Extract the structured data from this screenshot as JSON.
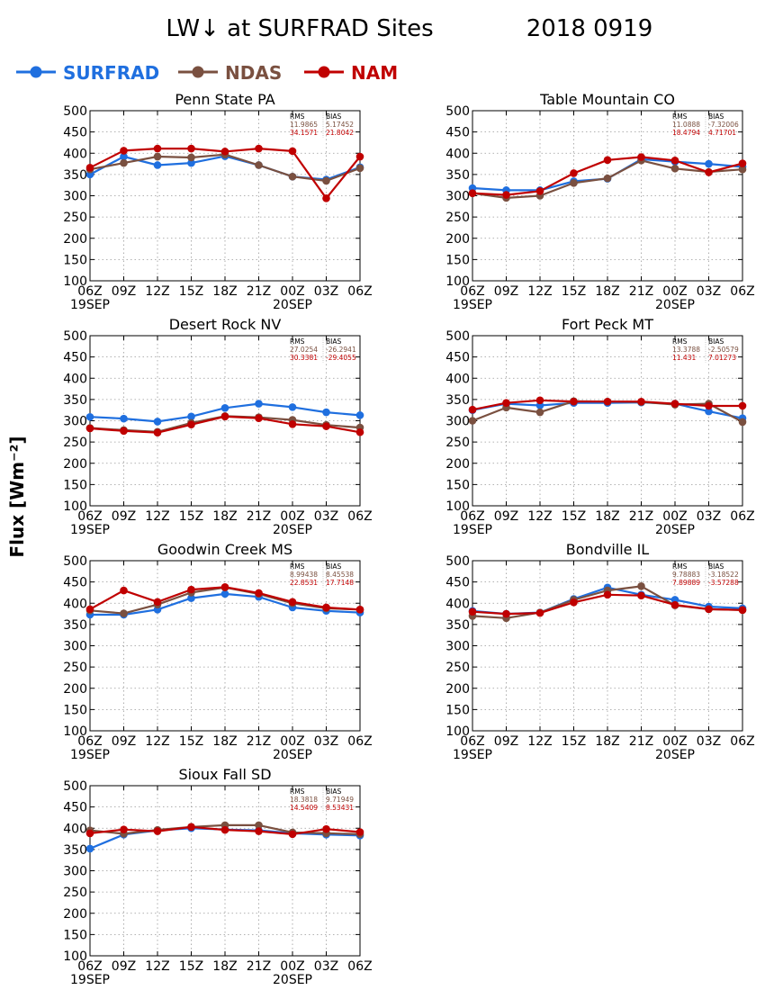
{
  "title": {
    "main": "LW↓ at SURFRAD Sites",
    "date": "2018 0919"
  },
  "legend": [
    {
      "name": "SURFRAD",
      "color": "#1f6fdf"
    },
    {
      "name": "NDAS",
      "color": "#7a5040"
    },
    {
      "name": "NAM",
      "color": "#c00000"
    }
  ],
  "ylabel": "Flux [Wm⁻²]",
  "stats_header": {
    "rms": "RMS",
    "bias": "BIAS"
  },
  "chart_data": [
    {
      "type": "line",
      "title": "Penn State PA",
      "categories": [
        "06Z",
        "09Z",
        "12Z",
        "15Z",
        "18Z",
        "21Z",
        "00Z",
        "03Z",
        "06Z"
      ],
      "date_labels": [
        "19SEP",
        "",
        "",
        "",
        "",
        "",
        "20SEP",
        "",
        ""
      ],
      "ylim": [
        100,
        500
      ],
      "yticks": [
        100,
        150,
        200,
        250,
        300,
        350,
        400,
        450,
        500
      ],
      "grid": true,
      "series": [
        {
          "name": "SURFRAD",
          "values": [
            350,
            392,
            372,
            377,
            393,
            372,
            345,
            338,
            367
          ]
        },
        {
          "name": "NDAS",
          "values": [
            362,
            377,
            392,
            390,
            397,
            372,
            345,
            335,
            365
          ]
        },
        {
          "name": "NAM",
          "values": [
            366,
            406,
            411,
            411,
            404,
            411,
            405,
            294,
            392
          ]
        }
      ],
      "stats": [
        {
          "rms": "11.9865",
          "bias": "5.17452"
        },
        {
          "rms": "34.1571",
          "bias": "21.8042"
        }
      ]
    },
    {
      "type": "line",
      "title": "Table Mountain CO",
      "categories": [
        "06Z",
        "09Z",
        "12Z",
        "15Z",
        "18Z",
        "21Z",
        "00Z",
        "03Z",
        "06Z"
      ],
      "date_labels": [
        "19SEP",
        "",
        "",
        "",
        "",
        "",
        "20SEP",
        "",
        ""
      ],
      "ylim": [
        100,
        500
      ],
      "yticks": [
        100,
        150,
        200,
        250,
        300,
        350,
        400,
        450,
        500
      ],
      "grid": true,
      "series": [
        {
          "name": "SURFRAD",
          "values": [
            318,
            313,
            313,
            334,
            340,
            386,
            380,
            375,
            368
          ]
        },
        {
          "name": "NDAS",
          "values": [
            306,
            295,
            300,
            330,
            341,
            383,
            364,
            356,
            362
          ]
        },
        {
          "name": "NAM",
          "values": [
            306,
            302,
            311,
            353,
            384,
            391,
            383,
            355,
            376
          ]
        }
      ],
      "stats": [
        {
          "rms": "11.0888",
          "bias": "-7.32006"
        },
        {
          "rms": "18.4794",
          "bias": "4.71701"
        }
      ]
    },
    {
      "type": "line",
      "title": "Desert Rock NV",
      "categories": [
        "06Z",
        "09Z",
        "12Z",
        "15Z",
        "18Z",
        "21Z",
        "00Z",
        "03Z",
        "06Z"
      ],
      "date_labels": [
        "19SEP",
        "",
        "",
        "",
        "",
        "",
        "20SEP",
        "",
        ""
      ],
      "ylim": [
        100,
        500
      ],
      "yticks": [
        100,
        150,
        200,
        250,
        300,
        350,
        400,
        450,
        500
      ],
      "grid": true,
      "series": [
        {
          "name": "SURFRAD",
          "values": [
            309,
            305,
            298,
            310,
            330,
            340,
            332,
            320,
            313
          ]
        },
        {
          "name": "NDAS",
          "values": [
            283,
            278,
            274,
            295,
            311,
            308,
            302,
            290,
            284
          ]
        },
        {
          "name": "NAM",
          "values": [
            282,
            276,
            272,
            291,
            310,
            306,
            292,
            287,
            273
          ]
        }
      ],
      "stats": [
        {
          "rms": "27.0254",
          "bias": "-26.2941"
        },
        {
          "rms": "30.3381",
          "bias": "-29.4055"
        }
      ]
    },
    {
      "type": "line",
      "title": "Fort Peck MT",
      "categories": [
        "06Z",
        "09Z",
        "12Z",
        "15Z",
        "18Z",
        "21Z",
        "00Z",
        "03Z",
        "06Z"
      ],
      "date_labels": [
        "19SEP",
        "",
        "",
        "",
        "",
        "",
        "20SEP",
        "",
        ""
      ],
      "ylim": [
        100,
        500
      ],
      "yticks": [
        100,
        150,
        200,
        250,
        300,
        350,
        400,
        450,
        500
      ],
      "grid": true,
      "series": [
        {
          "name": "SURFRAD",
          "values": [
            325,
            340,
            336,
            342,
            342,
            343,
            340,
            322,
            306
          ]
        },
        {
          "name": "NDAS",
          "values": [
            300,
            331,
            320,
            346,
            345,
            344,
            338,
            340,
            297
          ]
        },
        {
          "name": "NAM",
          "values": [
            326,
            342,
            348,
            345,
            345,
            345,
            340,
            335,
            335
          ]
        }
      ],
      "stats": [
        {
          "rms": "13.3788",
          "bias": "-2.50579"
        },
        {
          "rms": "11.431",
          "bias": "7.01273"
        }
      ]
    },
    {
      "type": "line",
      "title": "Goodwin Creek MS",
      "categories": [
        "06Z",
        "09Z",
        "12Z",
        "15Z",
        "18Z",
        "21Z",
        "00Z",
        "03Z",
        "06Z"
      ],
      "date_labels": [
        "19SEP",
        "",
        "",
        "",
        "",
        "",
        "20SEP",
        "",
        ""
      ],
      "ylim": [
        100,
        500
      ],
      "yticks": [
        100,
        150,
        200,
        250,
        300,
        350,
        400,
        450,
        500
      ],
      "grid": true,
      "series": [
        {
          "name": "SURFRAD",
          "values": [
            373,
            373,
            385,
            412,
            422,
            415,
            390,
            382,
            378
          ]
        },
        {
          "name": "NDAS",
          "values": [
            383,
            376,
            397,
            425,
            437,
            422,
            400,
            388,
            385
          ]
        },
        {
          "name": "NAM",
          "values": [
            386,
            430,
            403,
            432,
            438,
            424,
            403,
            390,
            385
          ]
        }
      ],
      "stats": [
        {
          "rms": "8.99438",
          "bias": "8.45538"
        },
        {
          "rms": "22.8531",
          "bias": "17.7148"
        }
      ]
    },
    {
      "type": "line",
      "title": "Bondville IL",
      "categories": [
        "06Z",
        "09Z",
        "12Z",
        "15Z",
        "18Z",
        "21Z",
        "00Z",
        "03Z",
        "06Z"
      ],
      "date_labels": [
        "19SEP",
        "",
        "",
        "",
        "",
        "",
        "20SEP",
        "",
        ""
      ],
      "ylim": [
        100,
        500
      ],
      "yticks": [
        100,
        150,
        200,
        250,
        300,
        350,
        400,
        450,
        500
      ],
      "grid": true,
      "series": [
        {
          "name": "SURFRAD",
          "values": [
            382,
            375,
            378,
            410,
            437,
            420,
            408,
            392,
            388
          ]
        },
        {
          "name": "NDAS",
          "values": [
            370,
            365,
            378,
            408,
            430,
            440,
            395,
            386,
            384
          ]
        },
        {
          "name": "NAM",
          "values": [
            380,
            375,
            377,
            402,
            420,
            418,
            396,
            386,
            384
          ]
        }
      ],
      "stats": [
        {
          "rms": "9.78883",
          "bias": "-3.18522"
        },
        {
          "rms": "7.89889",
          "bias": "-3.57288"
        }
      ]
    },
    {
      "type": "line",
      "title": "Sioux Fall SD",
      "categories": [
        "06Z",
        "09Z",
        "12Z",
        "15Z",
        "18Z",
        "21Z",
        "00Z",
        "03Z",
        "06Z"
      ],
      "date_labels": [
        "19SEP",
        "",
        "",
        "",
        "",
        "",
        "20SEP",
        "",
        ""
      ],
      "ylim": [
        100,
        500
      ],
      "yticks": [
        100,
        150,
        200,
        250,
        300,
        350,
        400,
        450,
        500
      ],
      "grid": true,
      "series": [
        {
          "name": "SURFRAD",
          "values": [
            352,
            385,
            395,
            400,
            397,
            395,
            388,
            385,
            383
          ]
        },
        {
          "name": "NDAS",
          "values": [
            395,
            387,
            396,
            403,
            407,
            407,
            390,
            388,
            386
          ]
        },
        {
          "name": "NAM",
          "values": [
            388,
            397,
            393,
            403,
            396,
            393,
            386,
            398,
            391
          ]
        }
      ],
      "stats": [
        {
          "rms": "18.3818",
          "bias": "9.71949"
        },
        {
          "rms": "14.5409",
          "bias": "8.53431"
        }
      ]
    }
  ]
}
